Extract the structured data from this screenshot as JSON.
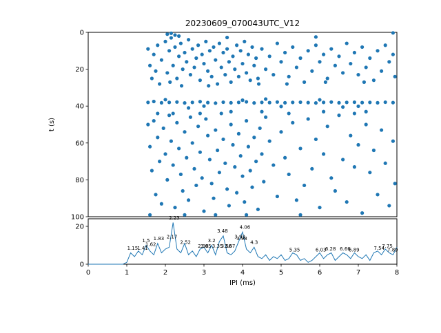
{
  "title": "20230609_070043UTC_V12",
  "colors": {
    "accent": "#1f77b4",
    "text": "#000000",
    "background": "#ffffff"
  },
  "chart_data": [
    {
      "type": "scatter",
      "title": "20230609_070043UTC_V12",
      "xlabel": "",
      "ylabel": "t (s)",
      "xlim": [
        0,
        8
      ],
      "ylim": [
        100,
        0
      ],
      "y_ticks": [
        0,
        20,
        40,
        60,
        80,
        100
      ],
      "grid": false,
      "points": [
        [
          1.55,
          9
        ],
        [
          1.7,
          12
        ],
        [
          1.8,
          7
        ],
        [
          1.9,
          15
        ],
        [
          2.0,
          5
        ],
        [
          2.05,
          22
        ],
        [
          2.1,
          10
        ],
        [
          2.15,
          3
        ],
        [
          2.2,
          18
        ],
        [
          2.25,
          8
        ],
        [
          2.3,
          25
        ],
        [
          2.35,
          13
        ],
        [
          2.4,
          6
        ],
        [
          2.45,
          20
        ],
        [
          2.5,
          11
        ],
        [
          2.55,
          16
        ],
        [
          2.6,
          4
        ],
        [
          2.65,
          23
        ],
        [
          2.7,
          9
        ],
        [
          2.75,
          19
        ],
        [
          2.8,
          14
        ],
        [
          2.85,
          7
        ],
        [
          2.9,
          26
        ],
        [
          2.95,
          12
        ],
        [
          3.0,
          17
        ],
        [
          3.05,
          5
        ],
        [
          3.1,
          21
        ],
        [
          3.15,
          10
        ],
        [
          3.2,
          24
        ],
        [
          3.25,
          8
        ],
        [
          3.3,
          15
        ],
        [
          3.35,
          28
        ],
        [
          3.4,
          6
        ],
        [
          3.45,
          19
        ],
        [
          3.5,
          11
        ],
        [
          3.55,
          23
        ],
        [
          3.6,
          9
        ],
        [
          3.65,
          16
        ],
        [
          3.7,
          27
        ],
        [
          3.75,
          13
        ],
        [
          3.8,
          20
        ],
        [
          3.85,
          7
        ],
        [
          3.9,
          24
        ],
        [
          3.95,
          10
        ],
        [
          4.0,
          17
        ],
        [
          4.05,
          5
        ],
        [
          4.1,
          22
        ],
        [
          4.15,
          12
        ],
        [
          4.2,
          26
        ],
        [
          4.25,
          8
        ],
        [
          4.3,
          18
        ],
        [
          4.35,
          14
        ],
        [
          4.4,
          25
        ],
        [
          4.5,
          9
        ],
        [
          4.6,
          20
        ],
        [
          4.7,
          13
        ],
        [
          4.8,
          23
        ],
        [
          4.9,
          6
        ],
        [
          5.0,
          16
        ],
        [
          5.1,
          11
        ],
        [
          5.2,
          24
        ],
        [
          5.3,
          8
        ],
        [
          5.4,
          19
        ],
        [
          5.5,
          14
        ],
        [
          5.6,
          27
        ],
        [
          5.7,
          10
        ],
        [
          5.8,
          21
        ],
        [
          5.9,
          7
        ],
        [
          6.0,
          16
        ],
        [
          6.1,
          12
        ],
        [
          6.2,
          25
        ],
        [
          6.3,
          9
        ],
        [
          6.4,
          18
        ],
        [
          6.5,
          13
        ],
        [
          6.6,
          22
        ],
        [
          6.7,
          6
        ],
        [
          6.8,
          17
        ],
        [
          6.9,
          11
        ],
        [
          7.0,
          23
        ],
        [
          7.1,
          8
        ],
        [
          7.2,
          19
        ],
        [
          7.3,
          14
        ],
        [
          7.4,
          26
        ],
        [
          7.5,
          10
        ],
        [
          7.6,
          21
        ],
        [
          7.7,
          7
        ],
        [
          7.8,
          16
        ],
        [
          7.9,
          12
        ],
        [
          7.95,
          24
        ],
        [
          1.6,
          18
        ],
        [
          1.65,
          25
        ],
        [
          1.75,
          21
        ],
        [
          1.85,
          28
        ],
        [
          2.12,
          27
        ],
        [
          2.42,
          29
        ],
        [
          3.12,
          29
        ],
        [
          4.42,
          28
        ],
        [
          5.15,
          28
        ],
        [
          6.15,
          27
        ],
        [
          7.15,
          27
        ],
        [
          2.05,
          1
        ],
        [
          2.15,
          0.5
        ],
        [
          2.25,
          1.5
        ],
        [
          2.35,
          2
        ],
        [
          7.9,
          0.3
        ],
        [
          5.9,
          2.5
        ],
        [
          3.6,
          2.8
        ],
        [
          1.55,
          38
        ],
        [
          1.7,
          37.5
        ],
        [
          1.9,
          38.2
        ],
        [
          2.1,
          38
        ],
        [
          2.3,
          37.8
        ],
        [
          2.5,
          38.3
        ],
        [
          2.7,
          38
        ],
        [
          2.9,
          37.6
        ],
        [
          3.1,
          38.1
        ],
        [
          3.3,
          38.4
        ],
        [
          3.5,
          37.9
        ],
        [
          3.7,
          38.2
        ],
        [
          3.9,
          38
        ],
        [
          4.1,
          37.7
        ],
        [
          4.3,
          38.3
        ],
        [
          4.5,
          38
        ],
        [
          4.7,
          38.1
        ],
        [
          4.9,
          37.8
        ],
        [
          5.1,
          38.2
        ],
        [
          5.3,
          38
        ],
        [
          5.5,
          37.9
        ],
        [
          5.7,
          38.1
        ],
        [
          5.9,
          38.3
        ],
        [
          6.1,
          38
        ],
        [
          6.3,
          37.8
        ],
        [
          6.5,
          38.2
        ],
        [
          6.7,
          38
        ],
        [
          6.9,
          37.9
        ],
        [
          7.1,
          38.1
        ],
        [
          7.3,
          38
        ],
        [
          7.5,
          38.2
        ],
        [
          7.7,
          37.9
        ],
        [
          7.9,
          38.1
        ],
        [
          2.0,
          36.5
        ],
        [
          3.0,
          40
        ],
        [
          4.0,
          36.8
        ],
        [
          5.0,
          40.2
        ],
        [
          6.0,
          36.6
        ],
        [
          7.0,
          40.1
        ],
        [
          2.6,
          41
        ],
        [
          4.6,
          36.2
        ],
        [
          6.6,
          40.5
        ],
        [
          1.55,
          50
        ],
        [
          1.6,
          62
        ],
        [
          1.65,
          75
        ],
        [
          1.7,
          48
        ],
        [
          1.75,
          88
        ],
        [
          1.8,
          57
        ],
        [
          1.85,
          70
        ],
        [
          1.9,
          93
        ],
        [
          1.95,
          52
        ],
        [
          2.0,
          66
        ],
        [
          2.05,
          80
        ],
        [
          2.1,
          45
        ],
        [
          2.15,
          59
        ],
        [
          2.2,
          72
        ],
        [
          2.25,
          95
        ],
        [
          2.3,
          49
        ],
        [
          2.35,
          63
        ],
        [
          2.4,
          77
        ],
        [
          2.45,
          86
        ],
        [
          2.5,
          54
        ],
        [
          2.55,
          68
        ],
        [
          2.6,
          91
        ],
        [
          2.65,
          46
        ],
        [
          2.7,
          60
        ],
        [
          2.75,
          74
        ],
        [
          2.8,
          83
        ],
        [
          2.85,
          51
        ],
        [
          2.9,
          65
        ],
        [
          2.95,
          79
        ],
        [
          3.0,
          97
        ],
        [
          3.05,
          47
        ],
        [
          3.1,
          56
        ],
        [
          3.15,
          69
        ],
        [
          3.2,
          82
        ],
        [
          3.25,
          90
        ],
        [
          3.3,
          53
        ],
        [
          3.35,
          64
        ],
        [
          3.4,
          76
        ],
        [
          3.45,
          44
        ],
        [
          3.5,
          58
        ],
        [
          3.55,
          71
        ],
        [
          3.6,
          85
        ],
        [
          3.65,
          94
        ],
        [
          3.7,
          50
        ],
        [
          3.75,
          61
        ],
        [
          3.8,
          73
        ],
        [
          3.85,
          87
        ],
        [
          3.9,
          55
        ],
        [
          3.95,
          67
        ],
        [
          4.0,
          78
        ],
        [
          4.05,
          92
        ],
        [
          4.1,
          48
        ],
        [
          4.15,
          62
        ],
        [
          4.2,
          75
        ],
        [
          4.25,
          84
        ],
        [
          4.3,
          57
        ],
        [
          4.35,
          70
        ],
        [
          4.4,
          96
        ],
        [
          4.45,
          52
        ],
        [
          4.5,
          66
        ],
        [
          4.55,
          81
        ],
        [
          4.6,
          46
        ],
        [
          4.7,
          59
        ],
        [
          4.8,
          72
        ],
        [
          4.9,
          89
        ],
        [
          5.0,
          54
        ],
        [
          5.1,
          68
        ],
        [
          5.2,
          77
        ],
        [
          5.3,
          49
        ],
        [
          5.4,
          91
        ],
        [
          5.5,
          63
        ],
        [
          5.6,
          83
        ],
        [
          5.7,
          47
        ],
        [
          5.8,
          74
        ],
        [
          5.9,
          58
        ],
        [
          6.0,
          95
        ],
        [
          6.1,
          66
        ],
        [
          6.2,
          51
        ],
        [
          6.3,
          79
        ],
        [
          6.4,
          86
        ],
        [
          6.5,
          45
        ],
        [
          6.6,
          69
        ],
        [
          6.7,
          92
        ],
        [
          6.8,
          56
        ],
        [
          6.9,
          73
        ],
        [
          7.0,
          61
        ],
        [
          7.1,
          98
        ],
        [
          7.2,
          50
        ],
        [
          7.3,
          76
        ],
        [
          7.4,
          64
        ],
        [
          7.5,
          88
        ],
        [
          7.6,
          53
        ],
        [
          7.7,
          71
        ],
        [
          7.8,
          94
        ],
        [
          7.9,
          59
        ],
        [
          7.95,
          82
        ],
        [
          2.2,
          44
        ],
        [
          2.5,
          99
        ],
        [
          3.3,
          99
        ],
        [
          4.1,
          99
        ],
        [
          5.5,
          99
        ],
        [
          2.9,
          44
        ],
        [
          3.7,
          43
        ],
        [
          4.5,
          43
        ],
        [
          5.2,
          44
        ],
        [
          6.1,
          43
        ],
        [
          7.2,
          43
        ],
        [
          1.6,
          99
        ],
        [
          1.8,
          44
        ],
        [
          6.9,
          44
        ]
      ]
    },
    {
      "type": "line",
      "xlabel": "IPI (ms)",
      "ylabel": "",
      "xlim": [
        0,
        8
      ],
      "ylim": [
        0,
        24
      ],
      "x_ticks": [
        0,
        1,
        2,
        3,
        4,
        5,
        6,
        7,
        8
      ],
      "y_ticks": [
        0,
        20
      ],
      "grid": false,
      "x0": 0,
      "dx": 0.1,
      "y": [
        0,
        0,
        0,
        0,
        0,
        0,
        0,
        0,
        0,
        0,
        1,
        6,
        4,
        7,
        5,
        10,
        7,
        5,
        11,
        6,
        8,
        9,
        22,
        8,
        6,
        11,
        5,
        7,
        4,
        8,
        9,
        6,
        10,
        5,
        12,
        15,
        6,
        5,
        7,
        12,
        17,
        8,
        6,
        9,
        4,
        3,
        5,
        2,
        4,
        3,
        5,
        2,
        3,
        6,
        5,
        2,
        3,
        1,
        2,
        4,
        6,
        3,
        5,
        6,
        2,
        4,
        6,
        5,
        3,
        6,
        4,
        3,
        5,
        2,
        6,
        7,
        5,
        8,
        6,
        5,
        9
      ],
      "annotations": [
        {
          "x": 1.15,
          "y": 7,
          "text": "1.15"
        },
        {
          "x": 1.41,
          "y": 7,
          "text": "1.41"
        },
        {
          "x": 1.5,
          "y": 11,
          "text": "1.5"
        },
        {
          "x": 1.62,
          "y": 9,
          "text": "1.62"
        },
        {
          "x": 1.83,
          "y": 12,
          "text": "1.83"
        },
        {
          "x": 2.17,
          "y": 13,
          "text": "2.17"
        },
        {
          "x": 2.23,
          "y": 23,
          "text": "2.23"
        },
        {
          "x": 2.52,
          "y": 10,
          "text": "2.52"
        },
        {
          "x": 2.98,
          "y": 8,
          "text": "2.98"
        },
        {
          "x": 3.05,
          "y": 8,
          "text": "3.05"
        },
        {
          "x": 3.2,
          "y": 11,
          "text": "3.2"
        },
        {
          "x": 3.35,
          "y": 8,
          "text": "3.35"
        },
        {
          "x": 3.48,
          "y": 16,
          "text": "3.48"
        },
        {
          "x": 3.58,
          "y": 8,
          "text": "3.58"
        },
        {
          "x": 3.67,
          "y": 8,
          "text": "3.67"
        },
        {
          "x": 3.93,
          "y": 13,
          "text": "3.93"
        },
        {
          "x": 3.98,
          "y": 12,
          "text": "3.98"
        },
        {
          "x": 4.06,
          "y": 18,
          "text": "4.06"
        },
        {
          "x": 4.3,
          "y": 10,
          "text": "4.3"
        },
        {
          "x": 5.35,
          "y": 6,
          "text": "5.35"
        },
        {
          "x": 6.03,
          "y": 6,
          "text": "6.03"
        },
        {
          "x": 6.28,
          "y": 6.5,
          "text": "6.28"
        },
        {
          "x": 6.66,
          "y": 6.5,
          "text": "6.66"
        },
        {
          "x": 6.89,
          "y": 6,
          "text": "6.89"
        },
        {
          "x": 7.54,
          "y": 7,
          "text": "7.54"
        },
        {
          "x": 7.75,
          "y": 8,
          "text": "7.75"
        },
        {
          "x": 7.89,
          "y": 6,
          "text": "7.89"
        }
      ]
    }
  ],
  "labels": {
    "title": "20230609_070043UTC_V12",
    "ylabel_top": "t (s)",
    "xlabel_bottom": "IPI (ms)"
  }
}
